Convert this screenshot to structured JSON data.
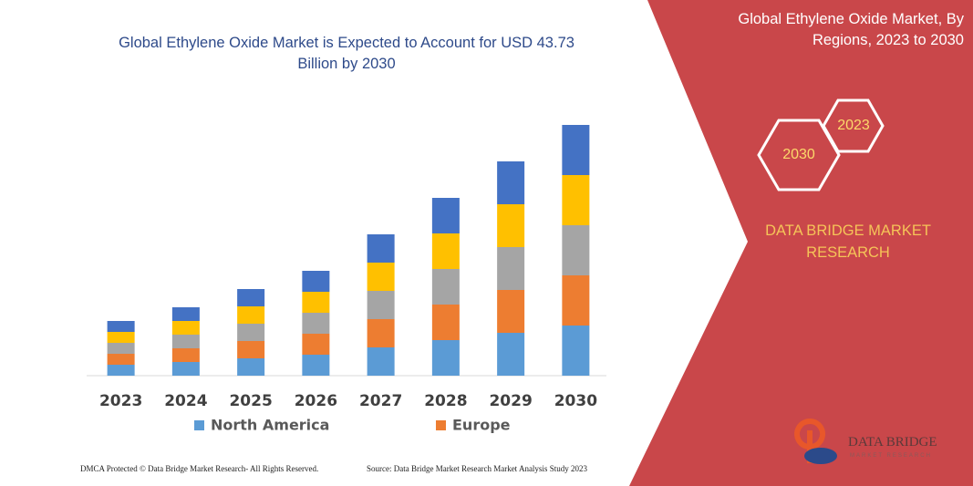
{
  "chart_data": {
    "type": "bar",
    "stacked": true,
    "title": "Global Ethylene Oxide Market is Expected to Account for USD 43.73 Billion by 2030",
    "categories": [
      "2023",
      "2024",
      "2025",
      "2026",
      "2027",
      "2028",
      "2029",
      "2030"
    ],
    "series": [
      {
        "name": "North America",
        "color": "#5b9bd5",
        "values": [
          12,
          15,
          19,
          23,
          31,
          39,
          47,
          55
        ]
      },
      {
        "name": "Europe",
        "color": "#ed7d31",
        "values": [
          12,
          15,
          19,
          23,
          31,
          39,
          47,
          55
        ]
      },
      {
        "color": "#a5a5a5",
        "values": [
          12,
          15,
          19,
          23,
          31,
          39,
          47,
          55
        ]
      },
      {
        "color": "#ffc000",
        "values": [
          12,
          15,
          19,
          23,
          31,
          39,
          47,
          55
        ]
      },
      {
        "color": "#4472c4",
        "values": [
          12,
          15,
          19,
          23,
          31,
          39,
          47,
          55
        ]
      }
    ],
    "ylim": [
      0,
      300
    ]
  },
  "panel": {
    "title": "Global Ethylene Oxide Market, By Regions, 2023 to 2030",
    "hex_labels": [
      "2023",
      "2030"
    ],
    "brand": "DATA BRIDGE MARKET RESEARCH",
    "logo_title": "DATA BRIDGE",
    "logo_subtitle": "MARKET RESEARCH"
  },
  "footer": {
    "left": "DMCA Protected © Data Bridge Market Research-  All Rights Reserved.",
    "right": "Source: Data Bridge Market Research  Market Analysis Study 2023"
  }
}
